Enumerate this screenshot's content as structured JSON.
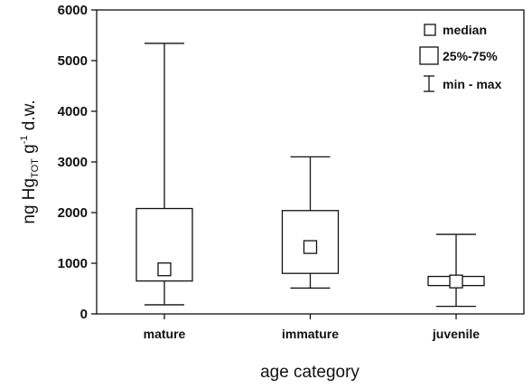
{
  "chart_data": {
    "type": "box",
    "categories": [
      "mature",
      "immature",
      "juvenile"
    ],
    "boxes": [
      {
        "category": "mature",
        "min": 180,
        "q1": 650,
        "median": 880,
        "q3": 2080,
        "max": 5340
      },
      {
        "category": "immature",
        "min": 510,
        "q1": 800,
        "median": 1320,
        "q3": 2040,
        "max": 3100
      },
      {
        "category": "juvenile",
        "min": 150,
        "q1": 560,
        "median": 640,
        "q3": 740,
        "max": 1570
      }
    ],
    "yticks": [
      "0",
      "1000",
      "2000",
      "3000",
      "4000",
      "5000",
      "6000"
    ],
    "ylim": [
      0,
      6000
    ],
    "xlabel": "age category",
    "ylabel": {
      "prefix": "ng Hg",
      "subscript": "TOT",
      "mid": " g",
      "superscript": "-1",
      "suffix": " d.w."
    },
    "legend": {
      "position": "top-right",
      "items": [
        "median",
        "25%-75%",
        "min - max"
      ]
    },
    "grid": false
  }
}
